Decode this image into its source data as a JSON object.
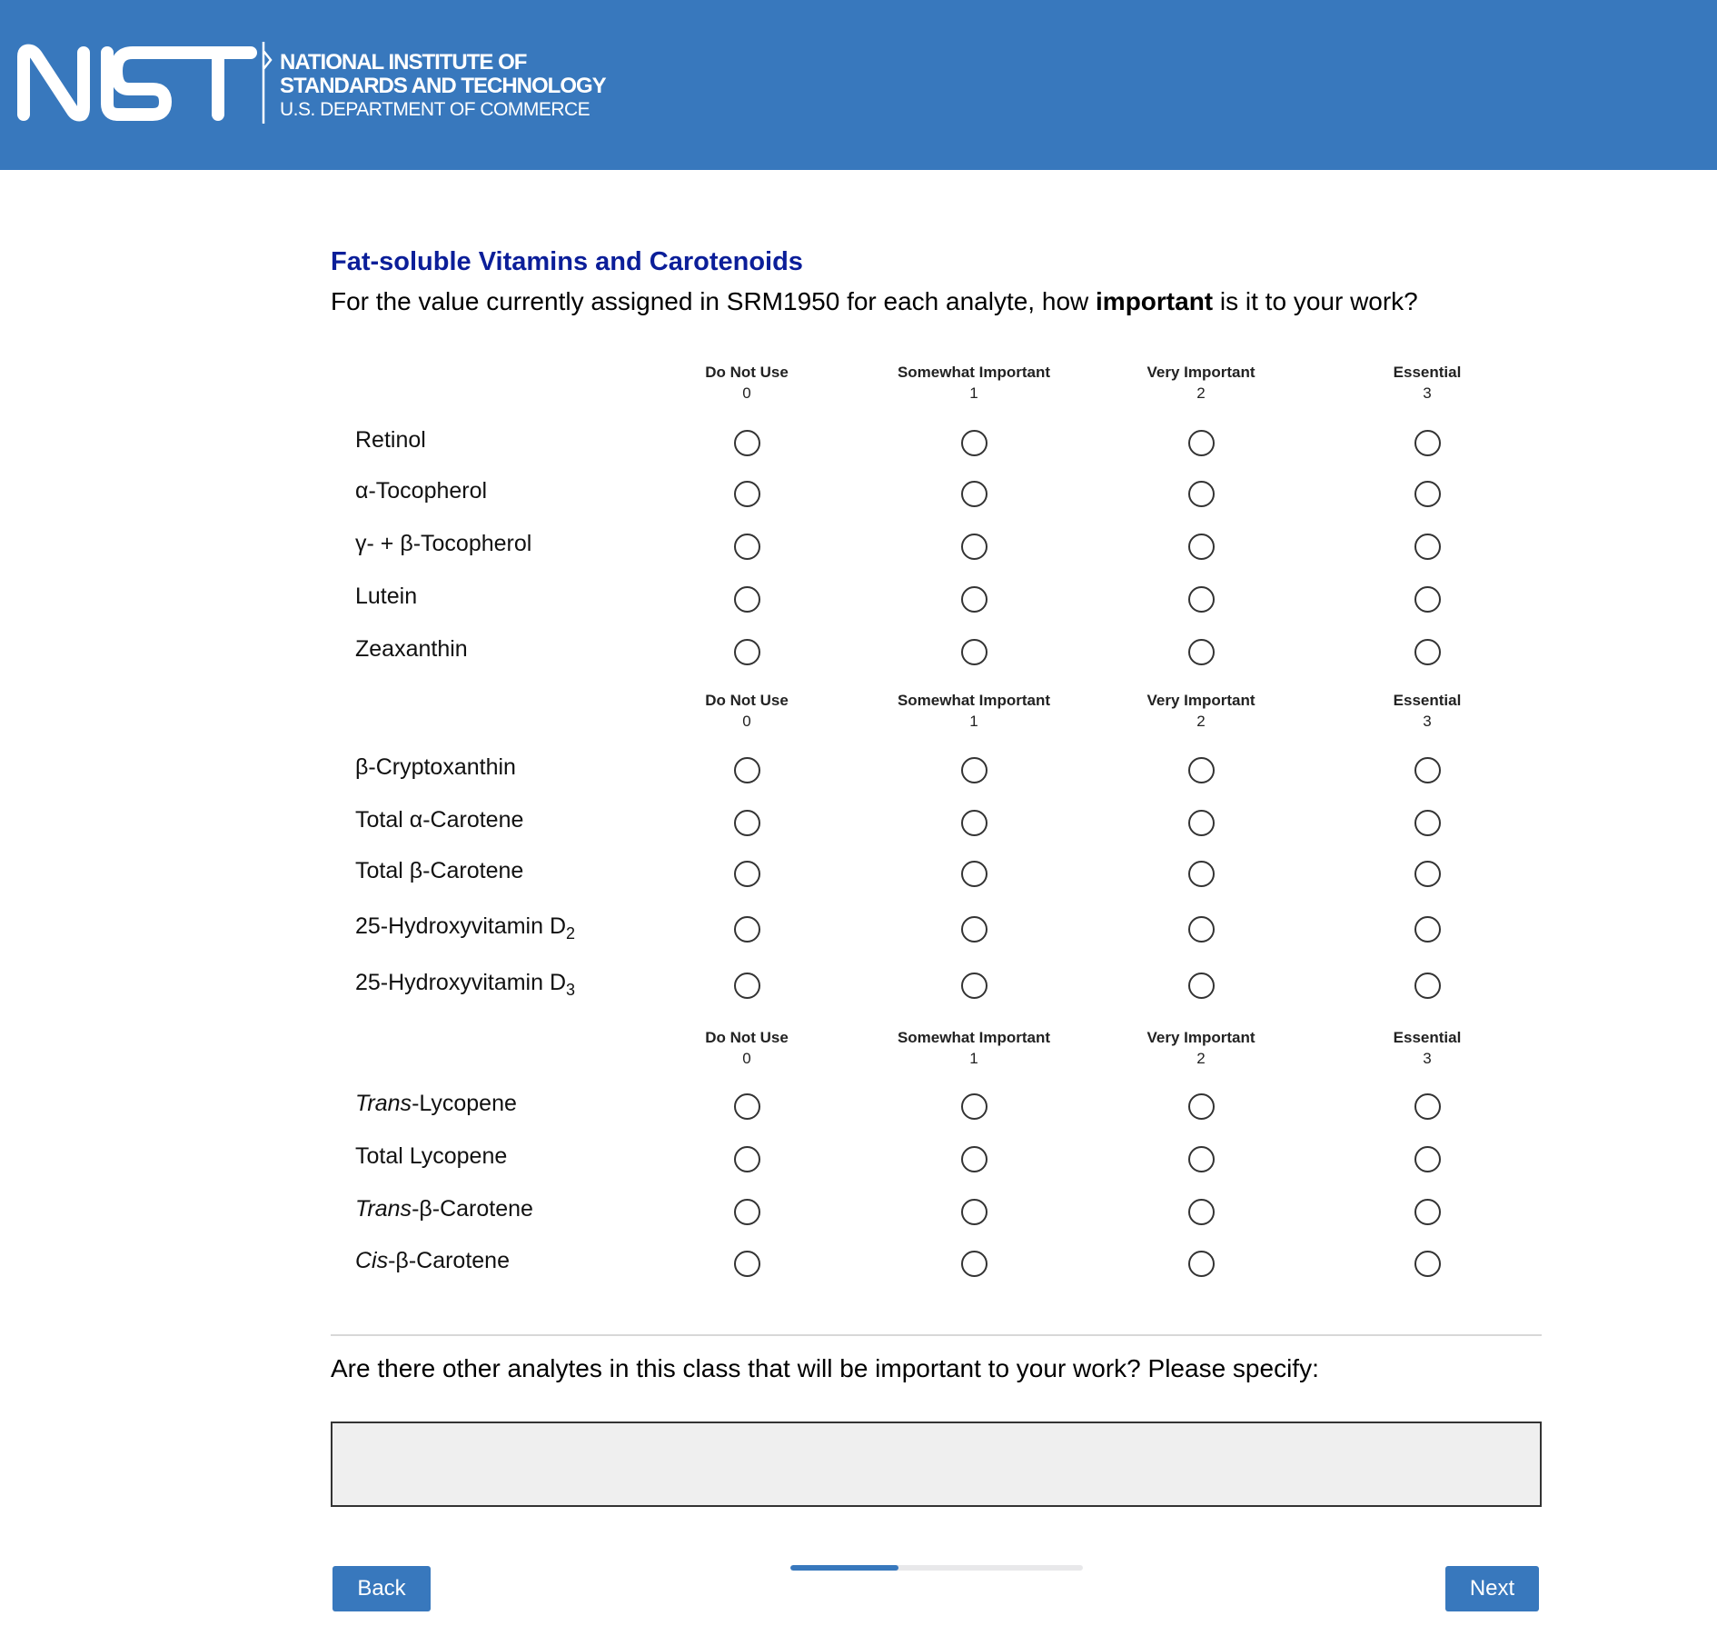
{
  "header": {
    "logo_text": "NIST",
    "line1": "NATIONAL INSTITUTE OF",
    "line2": "STANDARDS AND TECHNOLOGY",
    "line3": "U.S. DEPARTMENT OF COMMERCE",
    "background_color": "#3878bd"
  },
  "survey": {
    "title": "Fat-soluble Vitamins and Carotenoids",
    "question_before": "For the value currently assigned in SRM1950 for each analyte, how ",
    "question_bold": "important",
    "question_after": " is it to your work?",
    "scale": [
      {
        "label": "Do Not Use",
        "value": "0"
      },
      {
        "label": "Somewhat Important",
        "value": "1"
      },
      {
        "label": "Very Important",
        "value": "2"
      },
      {
        "label": "Essential",
        "value": "3"
      }
    ],
    "groups": [
      {
        "rows": [
          {
            "text": "Retinol"
          },
          {
            "text": "α-Tocopherol"
          },
          {
            "text": "γ- + β-Tocopherol"
          },
          {
            "text": "Lutein"
          },
          {
            "text": "Zeaxanthin"
          }
        ]
      },
      {
        "rows": [
          {
            "text": "β-Cryptoxanthin"
          },
          {
            "text": "Total α-Carotene"
          },
          {
            "text": "Total β-Carotene"
          },
          {
            "text": "25-Hydroxyvitamin D",
            "sub": "2"
          },
          {
            "text": "25-Hydroxyvitamin D",
            "sub": "3"
          }
        ]
      },
      {
        "rows": [
          {
            "italic": "Trans",
            "text": "-Lycopene"
          },
          {
            "text": "Total Lycopene"
          },
          {
            "italic": "Trans",
            "text": "-β-Carotene"
          },
          {
            "italic": "Cis",
            "text": "-β-Carotene"
          }
        ]
      }
    ],
    "other_question": "Are there other analytes in this class that will be important to your work? Please specify:",
    "other_value": ""
  },
  "nav": {
    "back_label": "Back",
    "next_label": "Next",
    "progress_percent": 37,
    "accent_color": "#3878bd"
  }
}
